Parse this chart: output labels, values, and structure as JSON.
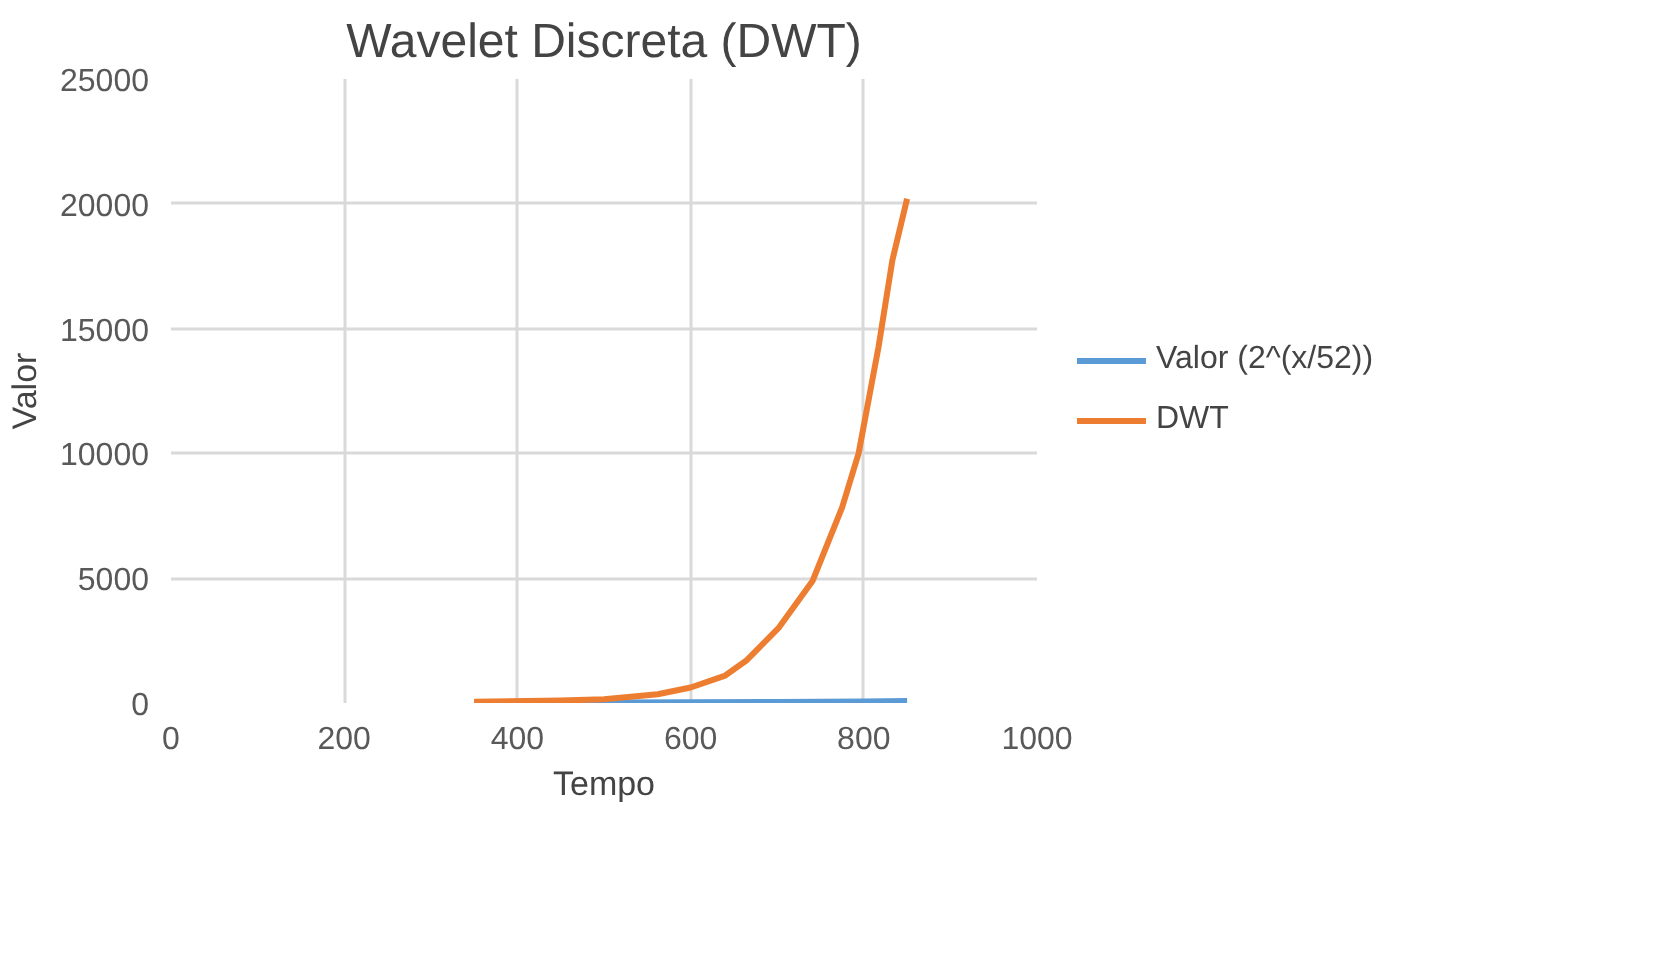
{
  "chart_data": {
    "type": "line",
    "title": "Wavelet Discreta (DWT)",
    "xlabel": "Tempo",
    "ylabel": "Valor",
    "xlim": [
      0,
      1000
    ],
    "xticks": [
      0,
      200,
      400,
      600,
      800,
      1000
    ],
    "ylim": [
      0,
      25000
    ],
    "yticks": [
      0,
      5000,
      10000,
      15000,
      20000,
      25000
    ],
    "grid": true,
    "legend": "right",
    "marker": "none",
    "line_style": "solid",
    "series": [
      {
        "name": "Valor (2^(x/52))",
        "color": "#5b9bd5",
        "x": [
          350,
          500,
          600,
          700,
          800,
          850
        ],
        "values": [
          10,
          20,
          30,
          40,
          60,
          80
        ]
      },
      {
        "name": "DWT",
        "color": "#ed7d31",
        "x": [
          350,
          450,
          500,
          562,
          600,
          640,
          664,
          702,
          741,
          775,
          794,
          817,
          833,
          850
        ],
        "values": [
          50,
          100,
          150,
          350,
          620,
          1100,
          1690,
          3020,
          4900,
          7840,
          10000,
          14260,
          17740,
          20200
        ]
      }
    ]
  }
}
